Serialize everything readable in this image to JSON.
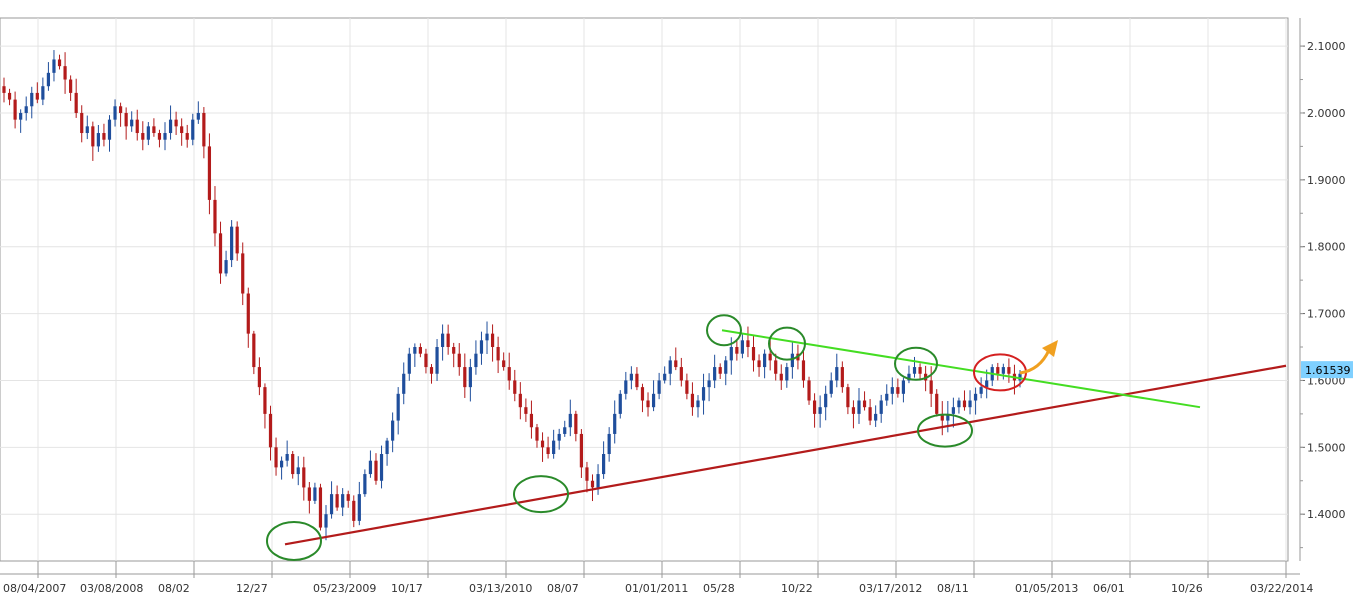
{
  "chart_data": {
    "type": "candlestick",
    "grid": true,
    "y_axis_side": "right",
    "ylim": [
      1.33,
      2.145
    ],
    "y_ticks": [
      1.4,
      1.5,
      1.6,
      1.7,
      1.8,
      1.9,
      2.0,
      2.1
    ],
    "y_tick_labels": [
      "1.4000",
      "1.5000",
      "1.6000",
      "1.7000",
      "1.8000",
      "1.9000",
      "2.0000",
      "2.1000"
    ],
    "x_tick_labels": [
      "08/04/2007",
      "03/08/2008",
      "08/02",
      "12/27",
      "05/23/2009",
      "10/17",
      "03/13/2010",
      "08/07",
      "01/01/2011",
      "05/28",
      "10/22",
      "03/17/2012",
      "08/11",
      "01/05/2013",
      "06/01",
      "10/26",
      "03/22/2014"
    ],
    "current_price_label": "1.61539",
    "current_price": 1.6154,
    "colors": {
      "up_candle": "#1f4e9c",
      "down_candle": "#b31b1b",
      "support_line": "#b31b1b",
      "resistance_line": "#44dd22",
      "touch_circle": "#2a8a2a",
      "breakout_circle": "#d42020",
      "arrow": "#f0a020",
      "price_tag_bg": "#7fd0ff"
    },
    "close_series": [
      2.03,
      2.02,
      1.99,
      2.0,
      2.01,
      2.03,
      2.02,
      2.04,
      2.06,
      2.08,
      2.07,
      2.05,
      2.03,
      2.0,
      1.97,
      1.98,
      1.95,
      1.97,
      1.96,
      1.99,
      2.01,
      2.0,
      1.98,
      1.99,
      1.97,
      1.96,
      1.98,
      1.97,
      1.96,
      1.97,
      1.99,
      1.98,
      1.97,
      1.96,
      1.99,
      2.0,
      1.95,
      1.87,
      1.82,
      1.76,
      1.78,
      1.83,
      1.79,
      1.73,
      1.67,
      1.62,
      1.59,
      1.55,
      1.5,
      1.47,
      1.48,
      1.49,
      1.46,
      1.47,
      1.44,
      1.42,
      1.44,
      1.38,
      1.4,
      1.43,
      1.41,
      1.43,
      1.42,
      1.39,
      1.43,
      1.46,
      1.48,
      1.45,
      1.49,
      1.51,
      1.54,
      1.58,
      1.61,
      1.64,
      1.65,
      1.64,
      1.62,
      1.61,
      1.65,
      1.67,
      1.65,
      1.64,
      1.62,
      1.59,
      1.62,
      1.64,
      1.66,
      1.67,
      1.65,
      1.63,
      1.62,
      1.6,
      1.58,
      1.56,
      1.55,
      1.53,
      1.51,
      1.5,
      1.49,
      1.51,
      1.52,
      1.53,
      1.55,
      1.52,
      1.47,
      1.45,
      1.44,
      1.46,
      1.49,
      1.52,
      1.55,
      1.58,
      1.6,
      1.61,
      1.59,
      1.57,
      1.56,
      1.58,
      1.6,
      1.61,
      1.63,
      1.62,
      1.6,
      1.58,
      1.56,
      1.57,
      1.59,
      1.6,
      1.62,
      1.61,
      1.63,
      1.65,
      1.64,
      1.66,
      1.65,
      1.63,
      1.62,
      1.64,
      1.63,
      1.61,
      1.6,
      1.62,
      1.64,
      1.63,
      1.6,
      1.57,
      1.55,
      1.56,
      1.58,
      1.6,
      1.62,
      1.59,
      1.56,
      1.55,
      1.57,
      1.56,
      1.54,
      1.55,
      1.57,
      1.58,
      1.59,
      1.58,
      1.6,
      1.61,
      1.62,
      1.61,
      1.6,
      1.58,
      1.55,
      1.54,
      1.55,
      1.56,
      1.57,
      1.56,
      1.57,
      1.58,
      1.59,
      1.6,
      1.62,
      1.61,
      1.62,
      1.61,
      1.6,
      1.61
    ],
    "support_line": [
      {
        "x": "12/27",
        "y": 1.355
      },
      {
        "x": "03/22/2014",
        "y": 1.622
      }
    ],
    "resistance_line": [
      {
        "x": "05/28",
        "y": 1.675
      },
      {
        "x": "10/26",
        "y": 1.56
      }
    ],
    "annotations": [
      {
        "type": "circle",
        "color": "green",
        "near": "12/27",
        "y": 1.36
      },
      {
        "type": "circle",
        "color": "green",
        "near": "03/13/2010",
        "y": 1.43
      },
      {
        "type": "circle",
        "color": "green",
        "near": "05/28",
        "y": 1.675
      },
      {
        "type": "circle",
        "color": "green",
        "near": "10/22",
        "y": 1.655
      },
      {
        "type": "circle",
        "color": "green",
        "near": "03/17/2012",
        "y": 1.625
      },
      {
        "type": "circle",
        "color": "green",
        "near": "08/11",
        "y": 1.525
      },
      {
        "type": "circle",
        "color": "red",
        "near": "08/11",
        "y": 1.612
      },
      {
        "type": "arrow",
        "color": "orange",
        "direction": "up-right"
      }
    ]
  }
}
